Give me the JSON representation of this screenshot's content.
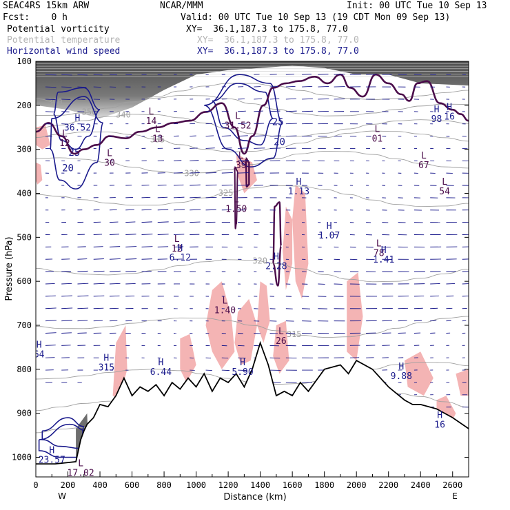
{
  "header": {
    "model": "SEAC4RS 15km ARW",
    "source": "NCAR/MMM",
    "init": "Init: 00 UTC Tue 10 Sep 13",
    "fcst": "Fcst:    0 h",
    "valid": "Valid: 00 UTC Tue 10 Sep 13 (19 CDT Mon 09 Sep 13)",
    "fields": [
      {
        "name": "Potential vorticity",
        "xy": "XY=  36.1,187.3 to 175.8, 77.0"
      },
      {
        "name": "Potential temperature",
        "xy": "XY=  36.1,187.3 to 175.8, 77.0"
      },
      {
        "name": "Horizontal wind speed",
        "xy": "XY=  36.1,187.3 to 175.8, 77.0"
      }
    ]
  },
  "colors": {
    "pv": "#4b0d4b",
    "theta": "#a0a0a0",
    "wind": "#1a1a8c",
    "pink": "#f4b4b4",
    "text": "#000000"
  },
  "chart_data": {
    "type": "cross-section",
    "xlabel": "Distance (km)",
    "ylabel": "Pressure (hPa)",
    "xlim": [
      0,
      2700
    ],
    "ylim": [
      1050,
      100
    ],
    "x_ticks": [
      "0",
      "200",
      "400",
      "600",
      "800",
      "1000",
      "1200",
      "1400",
      "1600",
      "1800",
      "2000",
      "2200",
      "2400",
      "2600"
    ],
    "y_ticks": [
      "100",
      "200",
      "300",
      "400",
      "500",
      "600",
      "700",
      "800",
      "900",
      "1000"
    ],
    "x_end_labels": {
      "left": "W",
      "right": "E"
    },
    "terrain_km_hpa": [
      [
        0,
        1015
      ],
      [
        120,
        1015
      ],
      [
        250,
        1010
      ],
      [
        280,
        960
      ],
      [
        300,
        940
      ],
      [
        320,
        925
      ],
      [
        360,
        910
      ],
      [
        400,
        880
      ],
      [
        450,
        885
      ],
      [
        500,
        860
      ],
      [
        550,
        820
      ],
      [
        600,
        860
      ],
      [
        650,
        840
      ],
      [
        700,
        850
      ],
      [
        750,
        835
      ],
      [
        800,
        860
      ],
      [
        850,
        830
      ],
      [
        900,
        845
      ],
      [
        950,
        820
      ],
      [
        1000,
        840
      ],
      [
        1050,
        810
      ],
      [
        1100,
        850
      ],
      [
        1150,
        820
      ],
      [
        1200,
        830
      ],
      [
        1250,
        810
      ],
      [
        1300,
        840
      ],
      [
        1350,
        800
      ],
      [
        1400,
        740
      ],
      [
        1450,
        790
      ],
      [
        1500,
        860
      ],
      [
        1550,
        850
      ],
      [
        1600,
        860
      ],
      [
        1650,
        830
      ],
      [
        1700,
        850
      ],
      [
        1800,
        800
      ],
      [
        1900,
        790
      ],
      [
        1950,
        810
      ],
      [
        2000,
        780
      ],
      [
        2100,
        800
      ],
      [
        2200,
        840
      ],
      [
        2300,
        870
      ],
      [
        2350,
        880
      ],
      [
        2400,
        880
      ],
      [
        2500,
        890
      ],
      [
        2600,
        910
      ],
      [
        2700,
        935
      ]
    ],
    "theta_contours": [
      {
        "label": "360",
        "pressure": 175
      },
      {
        "label": "350",
        "pressure": 205
      },
      {
        "label": "340",
        "pressure": 245
      },
      {
        "label": "335",
        "pressure": 278
      },
      {
        "label": "330",
        "pressure": 330
      },
      {
        "label": "325",
        "pressure": 410
      },
      {
        "label": "320",
        "pressure": 575
      },
      {
        "label": "315",
        "pressure": 700
      },
      {
        "label": "310",
        "pressure": 810
      },
      {
        "label": "305",
        "pressure": 880
      },
      {
        "label": "300",
        "pressure": 945
      }
    ],
    "wind_contours": [
      "20",
      "25"
    ],
    "extrema": [
      {
        "kind": "H",
        "value": "36.52",
        "x": 260,
        "p": 245
      },
      {
        "kind": "L",
        "value": "12",
        "x": 180,
        "p": 280
      },
      {
        "kind": "L",
        "value": "30",
        "x": 460,
        "p": 325
      },
      {
        "kind": "L",
        "value": "13",
        "x": 760,
        "p": 270
      },
      {
        "kind": "L",
        "value": "14",
        "x": 720,
        "p": 230
      },
      {
        "kind": "L",
        "value": "31.52",
        "x": 1260,
        "p": 240
      },
      {
        "kind": "L",
        "value": "39",
        "x": 1280,
        "p": 330
      },
      {
        "kind": "L",
        "value": "1.50",
        "x": 1250,
        "p": 430
      },
      {
        "kind": "H",
        "value": "1.13",
        "x": 1640,
        "p": 390
      },
      {
        "kind": "H",
        "value": "1.07",
        "x": 1830,
        "p": 490
      },
      {
        "kind": "H",
        "value": "2.28",
        "x": 1500,
        "p": 560
      },
      {
        "kind": "L",
        "value": "12",
        "x": 880,
        "p": 520
      },
      {
        "kind": "H",
        "value": "6.12",
        "x": 900,
        "p": 540
      },
      {
        "kind": "L",
        "value": "1.40",
        "x": 1180,
        "p": 660
      },
      {
        "kind": "L",
        "value": "78",
        "x": 2140,
        "p": 530
      },
      {
        "kind": "H",
        "value": "1.41",
        "x": 2170,
        "p": 545
      },
      {
        "kind": "L",
        "value": "01",
        "x": 2130,
        "p": 270
      },
      {
        "kind": "H",
        "value": "98",
        "x": 2500,
        "p": 225
      },
      {
        "kind": "H",
        "value": "16",
        "x": 2580,
        "p": 220
      },
      {
        "kind": "L",
        "value": "67",
        "x": 2420,
        "p": 330
      },
      {
        "kind": "L",
        "value": "54",
        "x": 2550,
        "p": 390
      },
      {
        "kind": "H",
        "value": "64",
        "x": 20,
        "p": 760
      },
      {
        "kind": "H",
        "value": "315",
        "x": 440,
        "p": 790
      },
      {
        "kind": "H",
        "value": "6.44",
        "x": 780,
        "p": 800
      },
      {
        "kind": "H",
        "value": "5.90",
        "x": 1290,
        "p": 800
      },
      {
        "kind": "L",
        "value": "26",
        "x": 1530,
        "p": 730
      },
      {
        "kind": "H",
        "value": "9.88",
        "x": 2280,
        "p": 810
      },
      {
        "kind": "H",
        "value": "23.57",
        "x": 100,
        "p": 1000
      },
      {
        "kind": "L",
        "value": "17.02",
        "x": 280,
        "p": 1030
      },
      {
        "kind": "H",
        "value": "16",
        "x": 2520,
        "p": 920
      }
    ]
  }
}
